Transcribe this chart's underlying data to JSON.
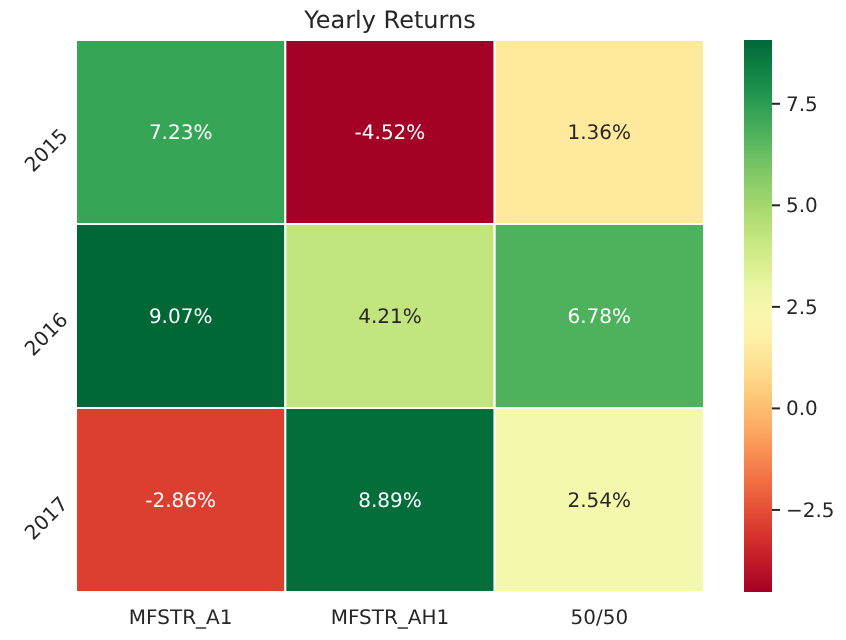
{
  "chart_data": {
    "type": "heatmap",
    "title": "Yearly Returns",
    "categories": [
      "MFSTR_A1",
      "MFSTR_AH1",
      "50/50"
    ],
    "y_categories": [
      "2015",
      "2016",
      "2017"
    ],
    "cells": [
      [
        7.23,
        -4.52,
        1.36
      ],
      [
        9.07,
        4.21,
        6.78
      ],
      [
        -2.86,
        8.89,
        2.54
      ]
    ],
    "cell_labels": [
      [
        "7.23%",
        "-4.52%",
        "1.36%"
      ],
      [
        "9.07%",
        "4.21%",
        "6.78%"
      ],
      [
        "-2.86%",
        "8.89%",
        "2.54%"
      ]
    ],
    "clim": [
      -4.52,
      9.07
    ],
    "cticks": [
      {
        "value": -2.5,
        "label": "−2.5"
      },
      {
        "value": 0,
        "label": "0.0"
      },
      {
        "value": 2.5,
        "label": "2.5"
      },
      {
        "value": 5,
        "label": "5.0"
      },
      {
        "value": 7.5,
        "label": "7.5"
      }
    ]
  }
}
